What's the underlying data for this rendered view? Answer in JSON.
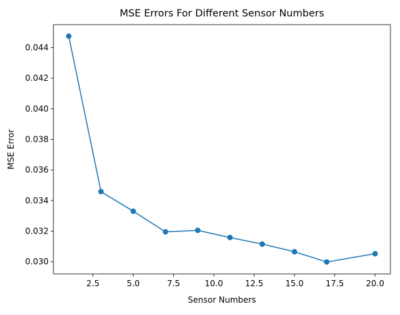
{
  "chart_data": {
    "type": "line",
    "title": "MSE Errors For Different Sensor Numbers",
    "xlabel": "Sensor Numbers",
    "ylabel": "MSE Error",
    "xlim": [
      0.05,
      20.95
    ],
    "ylim": [
      0.0292,
      0.0455
    ],
    "xticks": [
      2.5,
      5.0,
      7.5,
      10.0,
      12.5,
      15.0,
      17.5,
      20.0
    ],
    "xtick_labels": [
      "2.5",
      "5.0",
      "7.5",
      "10.0",
      "12.5",
      "15.0",
      "17.5",
      "20.0"
    ],
    "yticks": [
      0.03,
      0.032,
      0.034,
      0.036,
      0.038,
      0.04,
      0.042,
      0.044
    ],
    "ytick_labels": [
      "0.030",
      "0.032",
      "0.034",
      "0.036",
      "0.038",
      "0.040",
      "0.042",
      "0.044"
    ],
    "grid": false,
    "series": [
      {
        "color": "#1f77b4",
        "marker": "circle",
        "x": [
          1,
          3,
          5,
          7,
          9,
          11,
          13,
          15,
          17,
          20
        ],
        "y": [
          0.04475,
          0.03458,
          0.0333,
          0.03195,
          0.03205,
          0.03158,
          0.03115,
          0.03065,
          0.02998,
          0.03052
        ]
      }
    ]
  }
}
